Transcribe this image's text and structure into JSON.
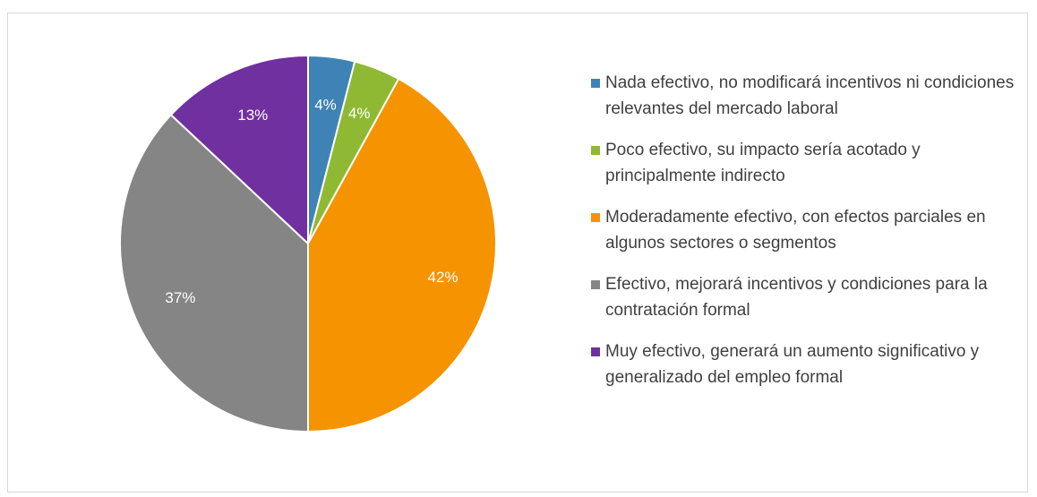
{
  "chart_data": {
    "type": "pie",
    "categories": [
      "Nada efectivo, no modificará incentivos ni condiciones relevantes del mercado laboral",
      "Poco efectivo, su impacto sería acotado y principalmente indirecto",
      "Moderadamente efectivo, con efectos parciales en algunos sectores o segmentos",
      "Efectivo, mejorará incentivos y condiciones para la contratación formal",
      "Muy efectivo, generará un aumento significativo y generalizado del empleo formal"
    ],
    "values": [
      4,
      4,
      42,
      37,
      13
    ],
    "value_labels": [
      "4%",
      "4%",
      "42%",
      "37%",
      "13%"
    ],
    "colors": [
      "#3f83b6",
      "#8fb933",
      "#f59300",
      "#858585",
      "#7030a0"
    ],
    "legend": "right"
  }
}
